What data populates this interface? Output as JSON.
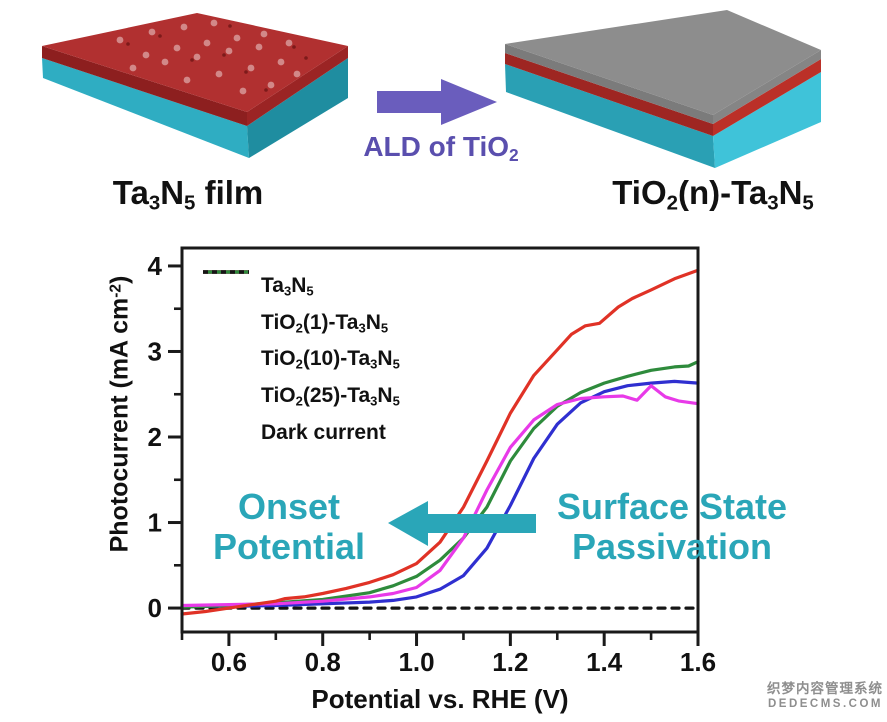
{
  "header": {
    "left_label": "Ta_3N_5 film",
    "arrow_label": "ALD of TiO_2",
    "right_label": "TiO_2(n)-Ta_3N_5"
  },
  "colors": {
    "left_slab_top": "#b13030",
    "left_slab_red_front": "#8d1f1f",
    "left_slab_red_side": "#9b2424",
    "left_slab_teal_front": "#2fadc2",
    "left_slab_teal_side": "#1f8da0",
    "right_slab_gray_top": "#8d8d8d",
    "right_slab_gray_front": "#7b7b7b",
    "right_slab_gray_side": "#858585",
    "right_slab_red_front": "#9e2622",
    "right_slab_red_side": "#bb3028",
    "right_slab_teal_front": "#2aa0b4",
    "right_slab_teal_side": "#3fc3d9",
    "defect_dot_light": "#d28888",
    "defect_dot_dark": "#7d1a1a",
    "process_arrow_purple": "#6a5dbd",
    "arrow_text_purple": "#5a4fae",
    "annotation_teal": "#2aa6b8",
    "axis_black": "#1a1a1a",
    "watermark_gray": "#8e8e8e"
  },
  "chart_data": {
    "type": "line",
    "title": "",
    "xlabel": "Potential vs. RHE (V)",
    "ylabel": "Photocurrent (mA cm^-2)",
    "xlim": [
      0.5,
      1.6
    ],
    "ylim": [
      -0.28,
      4.21
    ],
    "x_ticks": [
      "0.6",
      "0.8",
      "1.0",
      "1.2",
      "1.4",
      "1.6"
    ],
    "x_minor_step": 0.1,
    "y_ticks": [
      "0",
      "1",
      "2",
      "3",
      "4"
    ],
    "y_minor_step": 0.5,
    "grid": false,
    "legend_position": "top-left",
    "series": [
      {
        "name": "Ta_3N_5",
        "color": "#2f2fd0",
        "dash": null,
        "points": [
          [
            0.5,
            0.02
          ],
          [
            0.6,
            0.02
          ],
          [
            0.7,
            0.03
          ],
          [
            0.8,
            0.05
          ],
          [
            0.9,
            0.07
          ],
          [
            0.95,
            0.09
          ],
          [
            1.0,
            0.13
          ],
          [
            1.05,
            0.22
          ],
          [
            1.1,
            0.38
          ],
          [
            1.15,
            0.7
          ],
          [
            1.2,
            1.2
          ],
          [
            1.25,
            1.75
          ],
          [
            1.3,
            2.15
          ],
          [
            1.35,
            2.4
          ],
          [
            1.4,
            2.53
          ],
          [
            1.45,
            2.6
          ],
          [
            1.5,
            2.63
          ],
          [
            1.55,
            2.65
          ],
          [
            1.6,
            2.63
          ]
        ]
      },
      {
        "name": "TiO_2(1)-Ta_3N_5",
        "color": "#e83ae8",
        "dash": null,
        "points": [
          [
            0.5,
            0.03
          ],
          [
            0.6,
            0.04
          ],
          [
            0.7,
            0.05
          ],
          [
            0.8,
            0.08
          ],
          [
            0.9,
            0.13
          ],
          [
            0.95,
            0.17
          ],
          [
            1.0,
            0.24
          ],
          [
            1.05,
            0.44
          ],
          [
            1.1,
            0.82
          ],
          [
            1.15,
            1.38
          ],
          [
            1.2,
            1.88
          ],
          [
            1.25,
            2.2
          ],
          [
            1.3,
            2.38
          ],
          [
            1.35,
            2.45
          ],
          [
            1.4,
            2.47
          ],
          [
            1.44,
            2.48
          ],
          [
            1.47,
            2.43
          ],
          [
            1.5,
            2.6
          ],
          [
            1.53,
            2.47
          ],
          [
            1.56,
            2.42
          ],
          [
            1.6,
            2.39
          ]
        ]
      },
      {
        "name": "TiO_2(10)-Ta_3N_5",
        "color": "#e03226",
        "dash": null,
        "points": [
          [
            0.5,
            -0.07
          ],
          [
            0.55,
            -0.04
          ],
          [
            0.6,
            0.0
          ],
          [
            0.65,
            0.04
          ],
          [
            0.7,
            0.08
          ],
          [
            0.72,
            0.11
          ],
          [
            0.76,
            0.13
          ],
          [
            0.8,
            0.17
          ],
          [
            0.85,
            0.23
          ],
          [
            0.9,
            0.3
          ],
          [
            0.95,
            0.39
          ],
          [
            1.0,
            0.52
          ],
          [
            1.05,
            0.77
          ],
          [
            1.1,
            1.18
          ],
          [
            1.15,
            1.72
          ],
          [
            1.2,
            2.28
          ],
          [
            1.25,
            2.72
          ],
          [
            1.3,
            3.02
          ],
          [
            1.33,
            3.2
          ],
          [
            1.36,
            3.3
          ],
          [
            1.39,
            3.33
          ],
          [
            1.43,
            3.52
          ],
          [
            1.46,
            3.62
          ],
          [
            1.5,
            3.72
          ],
          [
            1.55,
            3.85
          ],
          [
            1.6,
            3.95
          ]
        ]
      },
      {
        "name": "TiO_2(25)-Ta_3N_5",
        "color": "#2e8b3c",
        "dash": null,
        "points": [
          [
            0.5,
            0.01
          ],
          [
            0.6,
            0.03
          ],
          [
            0.7,
            0.06
          ],
          [
            0.8,
            0.1
          ],
          [
            0.9,
            0.18
          ],
          [
            0.95,
            0.26
          ],
          [
            1.0,
            0.37
          ],
          [
            1.05,
            0.56
          ],
          [
            1.1,
            0.82
          ],
          [
            1.15,
            1.18
          ],
          [
            1.2,
            1.72
          ],
          [
            1.25,
            2.1
          ],
          [
            1.3,
            2.36
          ],
          [
            1.35,
            2.52
          ],
          [
            1.4,
            2.63
          ],
          [
            1.45,
            2.71
          ],
          [
            1.5,
            2.78
          ],
          [
            1.55,
            2.82
          ],
          [
            1.58,
            2.83
          ],
          [
            1.6,
            2.88
          ]
        ]
      },
      {
        "name": "Dark current",
        "color": "#151515",
        "dash": "7 7",
        "points": [
          [
            0.5,
            0.0
          ],
          [
            1.6,
            0.0
          ]
        ]
      }
    ],
    "annotations": [
      {
        "text": "Onset Potential",
        "lines": [
          "Onset",
          "Potential"
        ]
      },
      {
        "text": "Surface State Passivation",
        "lines": [
          "Surface State",
          "Passivation"
        ]
      }
    ]
  },
  "watermark": {
    "line1": "织梦内容管理系统",
    "line2": "DEDECMS.COM"
  }
}
